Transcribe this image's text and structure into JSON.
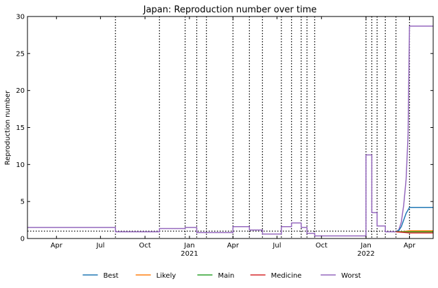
{
  "chart_data": {
    "type": "line",
    "title": "Japan: Reproduction number over time",
    "xlabel": "",
    "ylabel": "Reproduction number",
    "x_range": [
      "2020-02-01",
      "2022-05-20"
    ],
    "ylim": [
      0,
      30
    ],
    "y_ticks": [
      0,
      5,
      10,
      15,
      20,
      25,
      30
    ],
    "x_ticks": [
      {
        "date": "2020-04-01",
        "label": "Apr",
        "sub": ""
      },
      {
        "date": "2020-07-01",
        "label": "Jul",
        "sub": ""
      },
      {
        "date": "2020-10-01",
        "label": "Oct",
        "sub": ""
      },
      {
        "date": "2021-01-01",
        "label": "Jan",
        "sub": "2021"
      },
      {
        "date": "2021-04-01",
        "label": "Apr",
        "sub": ""
      },
      {
        "date": "2021-07-01",
        "label": "Jul",
        "sub": ""
      },
      {
        "date": "2021-10-01",
        "label": "Oct",
        "sub": ""
      },
      {
        "date": "2022-01-01",
        "label": "Jan",
        "sub": "2022"
      },
      {
        "date": "2022-04-01",
        "label": "Apr",
        "sub": ""
      }
    ],
    "horizontal_reference": 1.0,
    "change_points": [
      "2020-08-01",
      "2020-10-31",
      "2020-12-23",
      "2021-01-16",
      "2021-02-05",
      "2021-04-01",
      "2021-05-05",
      "2021-06-01",
      "2021-07-10",
      "2021-07-31",
      "2021-08-20",
      "2021-09-01",
      "2021-09-17",
      "2022-01-01",
      "2022-01-13",
      "2022-01-24",
      "2022-02-10",
      "2022-03-04",
      "2022-04-01"
    ],
    "legend": {
      "placement": "bottom-center",
      "columns": 5
    },
    "series": [
      {
        "name": "Best",
        "color": "#1f77b4",
        "points": [
          [
            "2022-03-04",
            0.9
          ],
          [
            "2022-03-10",
            1.1
          ],
          [
            "2022-03-15",
            1.6
          ],
          [
            "2022-03-20",
            2.5
          ],
          [
            "2022-03-25",
            3.4
          ],
          [
            "2022-04-01",
            4.2
          ],
          [
            "2022-05-20",
            4.2
          ]
        ]
      },
      {
        "name": "Likely",
        "color": "#ff7f0e",
        "points": [
          [
            "2022-03-04",
            0.9
          ],
          [
            "2022-03-20",
            0.95
          ],
          [
            "2022-04-01",
            1.05
          ],
          [
            "2022-05-20",
            1.05
          ]
        ]
      },
      {
        "name": "Main",
        "color": "#2ca02c",
        "points": [
          [
            "2022-03-04",
            0.9
          ],
          [
            "2022-04-01",
            0.9
          ],
          [
            "2022-05-20",
            0.9
          ]
        ]
      },
      {
        "name": "Medicine",
        "color": "#d62728",
        "points": [
          [
            "2022-03-04",
            0.9
          ],
          [
            "2022-04-01",
            0.75
          ],
          [
            "2022-05-20",
            0.75
          ]
        ]
      },
      {
        "name": "Worst",
        "color": "#9467bd",
        "points": [
          [
            "2020-02-01",
            1.5
          ],
          [
            "2020-08-01",
            1.5
          ],
          [
            "2020-08-01",
            0.9
          ],
          [
            "2020-10-31",
            0.9
          ],
          [
            "2020-10-31",
            1.35
          ],
          [
            "2020-12-23",
            1.35
          ],
          [
            "2020-12-23",
            1.5
          ],
          [
            "2021-01-16",
            1.5
          ],
          [
            "2021-01-16",
            0.8
          ],
          [
            "2021-02-05",
            0.8
          ],
          [
            "2021-04-01",
            0.8
          ],
          [
            "2021-04-01",
            1.6
          ],
          [
            "2021-05-05",
            1.6
          ],
          [
            "2021-05-05",
            1.15
          ],
          [
            "2021-06-01",
            1.15
          ],
          [
            "2021-06-01",
            0.6
          ],
          [
            "2021-07-10",
            0.6
          ],
          [
            "2021-07-10",
            1.6
          ],
          [
            "2021-07-31",
            1.6
          ],
          [
            "2021-07-31",
            2.1
          ],
          [
            "2021-08-20",
            2.1
          ],
          [
            "2021-08-20",
            1.5
          ],
          [
            "2021-09-01",
            1.5
          ],
          [
            "2021-09-01",
            0.7
          ],
          [
            "2021-09-17",
            0.7
          ],
          [
            "2021-09-17",
            0.35
          ],
          [
            "2022-01-01",
            0.35
          ],
          [
            "2022-01-01",
            11.3
          ],
          [
            "2022-01-13",
            11.3
          ],
          [
            "2022-01-13",
            3.5
          ],
          [
            "2022-01-24",
            3.5
          ],
          [
            "2022-01-24",
            1.7
          ],
          [
            "2022-02-10",
            1.7
          ],
          [
            "2022-02-10",
            0.9
          ],
          [
            "2022-03-04",
            0.9
          ],
          [
            "2022-03-10",
            1.2
          ],
          [
            "2022-03-15",
            2.2
          ],
          [
            "2022-03-20",
            4.5
          ],
          [
            "2022-03-25",
            8.0
          ],
          [
            "2022-03-29",
            14.0
          ],
          [
            "2022-04-01",
            28.7
          ],
          [
            "2022-05-20",
            28.7
          ]
        ]
      }
    ]
  }
}
